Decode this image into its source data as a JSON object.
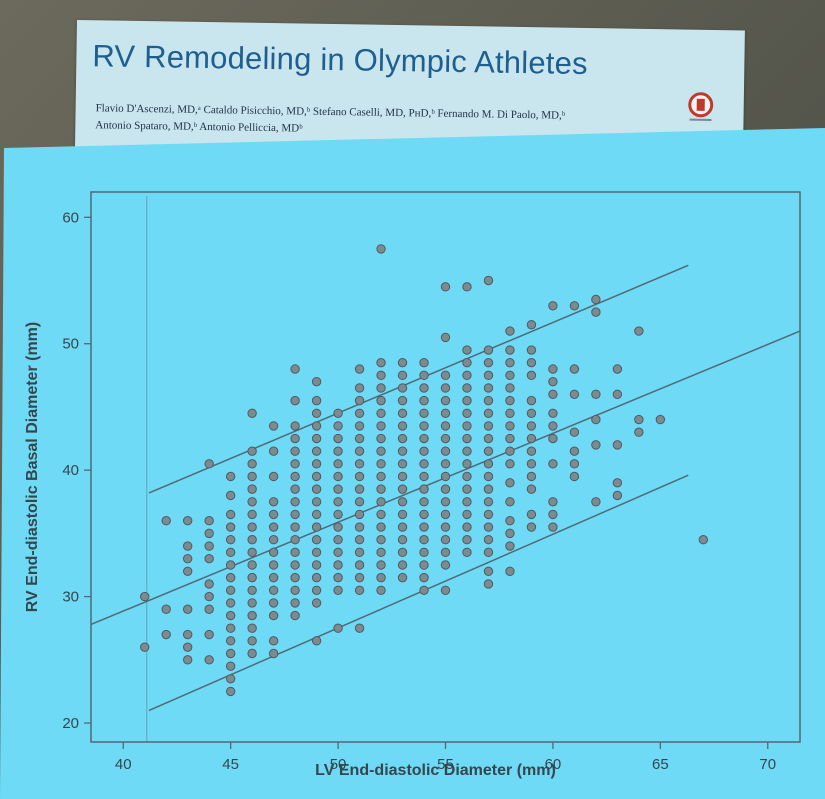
{
  "paper": {
    "title": "RV Remodeling in Olympic Athletes",
    "authors_line1": "Flavio D'Ascenzi, MD,ᵃ Cataldo Pisicchio, MD,ᵇ Stefano Caselli, MD, PʜD,ᵇ Fernando M. Di Paolo, MD,ᵇ",
    "authors_line2": "Antonio Spataro, MD,ᵇ Antonio Pelliccia, MDᵇ",
    "badge_icon": "crossmark-icon"
  },
  "colors": {
    "panel_bg": "#6fdaf6",
    "card_bg": "#c9e6ef",
    "title": "#1e5f90",
    "marker": "#7d8a8f",
    "line": "#4f6a75",
    "axis_text": "#35464d"
  },
  "chart_data": {
    "type": "scatter",
    "title": "",
    "xlabel": "LV End-diastolic Diameter (mm)",
    "ylabel": "RV End-diastolic Basal Diameter (mm)",
    "xlim": [
      38.5,
      71.5
    ],
    "ylim": [
      18.5,
      62
    ],
    "xticks": [
      40,
      45,
      50,
      55,
      60,
      65,
      70
    ],
    "yticks": [
      20,
      30,
      40,
      50,
      60
    ],
    "grid": false,
    "x_gridline": 41.1,
    "columns": [
      {
        "x": 41,
        "y": [
          26,
          30
        ]
      },
      {
        "x": 42,
        "y": [
          27,
          29,
          36
        ]
      },
      {
        "x": 43,
        "y": [
          25,
          26,
          27,
          29,
          32,
          33,
          34,
          36
        ]
      },
      {
        "x": 44,
        "y": [
          25,
          27,
          29,
          30,
          31,
          33,
          34,
          35,
          36,
          40.5
        ]
      },
      {
        "x": 45,
        "y": [
          22.5,
          23.5,
          24.5,
          25.5,
          26.5,
          27.5,
          28.5,
          29.5,
          30.5,
          31.5,
          32.5,
          33.5,
          34.5,
          35.5,
          36.5,
          38,
          39.5
        ]
      },
      {
        "x": 46,
        "y": [
          25.5,
          26.5,
          27.5,
          28.5,
          29.5,
          30.5,
          31.5,
          32.5,
          33.5,
          34.5,
          35.5,
          36.5,
          37.5,
          38.5,
          39.5,
          40.5,
          41.5,
          44.5
        ]
      },
      {
        "x": 47,
        "y": [
          25.5,
          26.5,
          28.5,
          29.5,
          30.5,
          31.5,
          32.5,
          33.5,
          34.5,
          35.5,
          36.5,
          37.5,
          39.5,
          41.5,
          43.5
        ]
      },
      {
        "x": 48,
        "y": [
          28.5,
          29.5,
          30.5,
          31.5,
          32.5,
          33.5,
          34.5,
          35.5,
          36.5,
          37.5,
          38.5,
          39.5,
          40.5,
          41.5,
          42.5,
          43.5,
          45.5,
          48
        ]
      },
      {
        "x": 49,
        "y": [
          26.5,
          29.5,
          30.5,
          31.5,
          32.5,
          33.5,
          34.5,
          35.5,
          36.5,
          37.5,
          38.5,
          39.5,
          40.5,
          41.5,
          42.5,
          43.5,
          44.5,
          45.5,
          47
        ]
      },
      {
        "x": 50,
        "y": [
          27.5,
          30.5,
          31.5,
          32.5,
          33.5,
          34.5,
          35.5,
          36.5,
          37.5,
          38.5,
          39.5,
          40.5,
          41.5,
          42.5,
          43.5,
          44.5
        ]
      },
      {
        "x": 51,
        "y": [
          27.5,
          30.5,
          31.5,
          32.5,
          33.5,
          34.5,
          35.5,
          36.5,
          37.5,
          38.5,
          39.5,
          40.5,
          41.5,
          42.5,
          43.5,
          44.5,
          45.5,
          46.5,
          48
        ]
      },
      {
        "x": 52,
        "y": [
          30.5,
          31.5,
          32.5,
          33.5,
          34.5,
          35.5,
          36.5,
          37.5,
          38.5,
          39.5,
          40.5,
          41.5,
          42.5,
          43.5,
          44.5,
          45.5,
          46.5,
          47.5,
          48.5,
          57.5
        ]
      },
      {
        "x": 53,
        "y": [
          31.5,
          32.5,
          33.5,
          34.5,
          35.5,
          36.5,
          37.5,
          38.5,
          39.5,
          40.5,
          41.5,
          42.5,
          43.5,
          44.5,
          45.5,
          46.5,
          47.5,
          48.5
        ]
      },
      {
        "x": 54,
        "y": [
          30.5,
          31.5,
          32.5,
          33.5,
          34.5,
          35.5,
          36.5,
          37.5,
          38.5,
          39.5,
          40.5,
          41.5,
          42.5,
          43.5,
          44.5,
          45.5,
          46.5,
          47.5,
          48.5
        ]
      },
      {
        "x": 55,
        "y": [
          30.5,
          32.5,
          33.5,
          34.5,
          35.5,
          36.5,
          37.5,
          38.5,
          39.5,
          40.5,
          41.5,
          42.5,
          43.5,
          44.5,
          45.5,
          46.5,
          47.5,
          50.5,
          54.5
        ]
      },
      {
        "x": 56,
        "y": [
          33.5,
          34.5,
          35.5,
          36.5,
          37.5,
          38.5,
          39.5,
          40.5,
          41.5,
          42.5,
          43.5,
          44.5,
          45.5,
          46.5,
          47.5,
          48.5,
          49.5,
          54.5
        ]
      },
      {
        "x": 57,
        "y": [
          31,
          32,
          33.5,
          34.5,
          35.5,
          36.5,
          37.5,
          38.5,
          39.5,
          40.5,
          41.5,
          42.5,
          43.5,
          44.5,
          45.5,
          46.5,
          47.5,
          48.5,
          49.5,
          55
        ]
      },
      {
        "x": 58,
        "y": [
          32,
          34,
          35,
          36,
          37.5,
          39,
          40.5,
          41.5,
          42.5,
          43.5,
          44.5,
          45.5,
          46.5,
          47.5,
          48.5,
          49.5,
          51
        ]
      },
      {
        "x": 59,
        "y": [
          35.5,
          36.5,
          38.5,
          39.5,
          40.5,
          41.5,
          42.5,
          43.5,
          44.5,
          45.5,
          47.5,
          48.5,
          49.5,
          51.5
        ]
      },
      {
        "x": 60,
        "y": [
          35.5,
          36.5,
          37.5,
          40.5,
          42.5,
          43.5,
          44.5,
          46,
          47,
          48,
          53
        ]
      },
      {
        "x": 61,
        "y": [
          39.5,
          40.5,
          41.5,
          43,
          46,
          48,
          53
        ]
      },
      {
        "x": 62,
        "y": [
          37.5,
          42,
          44,
          46,
          52.5,
          53.5
        ]
      },
      {
        "x": 63,
        "y": [
          38,
          39,
          42,
          46,
          48
        ]
      },
      {
        "x": 64,
        "y": [
          43,
          44,
          51
        ]
      },
      {
        "x": 65,
        "y": [
          44
        ]
      },
      {
        "x": 67,
        "y": [
          34.5
        ]
      }
    ],
    "regression": {
      "center": {
        "x": [
          38.5,
          71.5
        ],
        "y": [
          27.8,
          51.0
        ]
      },
      "upper": {
        "x": [
          41.2,
          66.3
        ],
        "y": [
          38.2,
          56.2
        ]
      },
      "lower": {
        "x": [
          41.2,
          66.3
        ],
        "y": [
          21.0,
          39.6
        ]
      }
    }
  }
}
